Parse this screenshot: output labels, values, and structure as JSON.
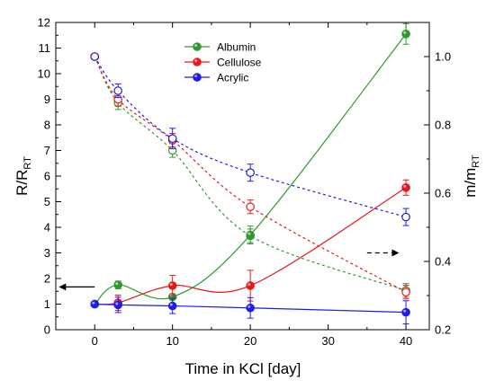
{
  "chart_data": {
    "type": "scatter",
    "xlabel": "Time in KCl [day]",
    "ylabel_left": {
      "main": "R/R",
      "sub": "RT"
    },
    "ylabel_right": {
      "main": "m/m",
      "sub": "RT"
    },
    "xlim": [
      -5,
      43
    ],
    "ylim_left": [
      0,
      12
    ],
    "ylim_right": [
      0.2,
      1.1
    ],
    "xticks": [
      0,
      10,
      20,
      30,
      40
    ],
    "yticks_left": [
      0,
      1,
      2,
      3,
      4,
      5,
      6,
      7,
      8,
      9,
      10,
      11,
      12
    ],
    "yticks_right": [
      0.2,
      0.4,
      0.6,
      0.8,
      1.0
    ],
    "legend_position": "top-center",
    "series": [
      {
        "name": "Albumin",
        "color": "#2e9a2e",
        "resistance": {
          "x": [
            0,
            3,
            10,
            20,
            40
          ],
          "y": [
            1.0,
            1.75,
            1.28,
            3.7,
            11.55
          ],
          "err": [
            0,
            0.15,
            0.1,
            0.35,
            0.4
          ]
        },
        "mass": {
          "x": [
            0,
            3,
            10,
            20,
            40
          ],
          "y": [
            1.0,
            0.865,
            0.725,
            0.475,
            0.315
          ],
          "err": [
            0,
            0.02,
            0.02,
            0.02,
            0.02
          ]
        }
      },
      {
        "name": "Cellulose",
        "color": "#e8191b",
        "resistance": {
          "x": [
            0,
            3,
            10,
            20,
            40
          ],
          "y": [
            1.0,
            1.05,
            1.72,
            1.72,
            5.55
          ],
          "err": [
            0,
            0.3,
            0.4,
            0.6,
            0.3
          ]
        },
        "mass": {
          "x": [
            0,
            3,
            10,
            20,
            40
          ],
          "y": [
            1.0,
            0.875,
            0.755,
            0.56,
            0.31
          ],
          "err": [
            0,
            0.02,
            0.02,
            0.02,
            0.02
          ]
        }
      },
      {
        "name": "Acrylic",
        "color": "#1d1de8",
        "resistance": {
          "x": [
            0,
            3,
            10,
            20,
            40
          ],
          "y": [
            1.0,
            0.97,
            0.93,
            0.85,
            0.68
          ],
          "err": [
            0,
            0.3,
            0.3,
            0.4,
            0.45
          ]
        },
        "mass": {
          "x": [
            0,
            3,
            10,
            20,
            40
          ],
          "y": [
            1.0,
            0.9,
            0.76,
            0.66,
            0.53
          ],
          "err": [
            0,
            0.02,
            0.03,
            0.025,
            0.025
          ]
        }
      }
    ],
    "annotations": [
      {
        "type": "arrow",
        "style": "solid",
        "direction": "left",
        "axis": "left",
        "from": [
          0,
          1.67
        ],
        "to": [
          -4.5,
          1.67
        ]
      },
      {
        "type": "arrow",
        "style": "dashed",
        "direction": "right",
        "axis": "right",
        "from": [
          35,
          0.425
        ],
        "to": [
          39,
          0.425
        ]
      }
    ]
  }
}
